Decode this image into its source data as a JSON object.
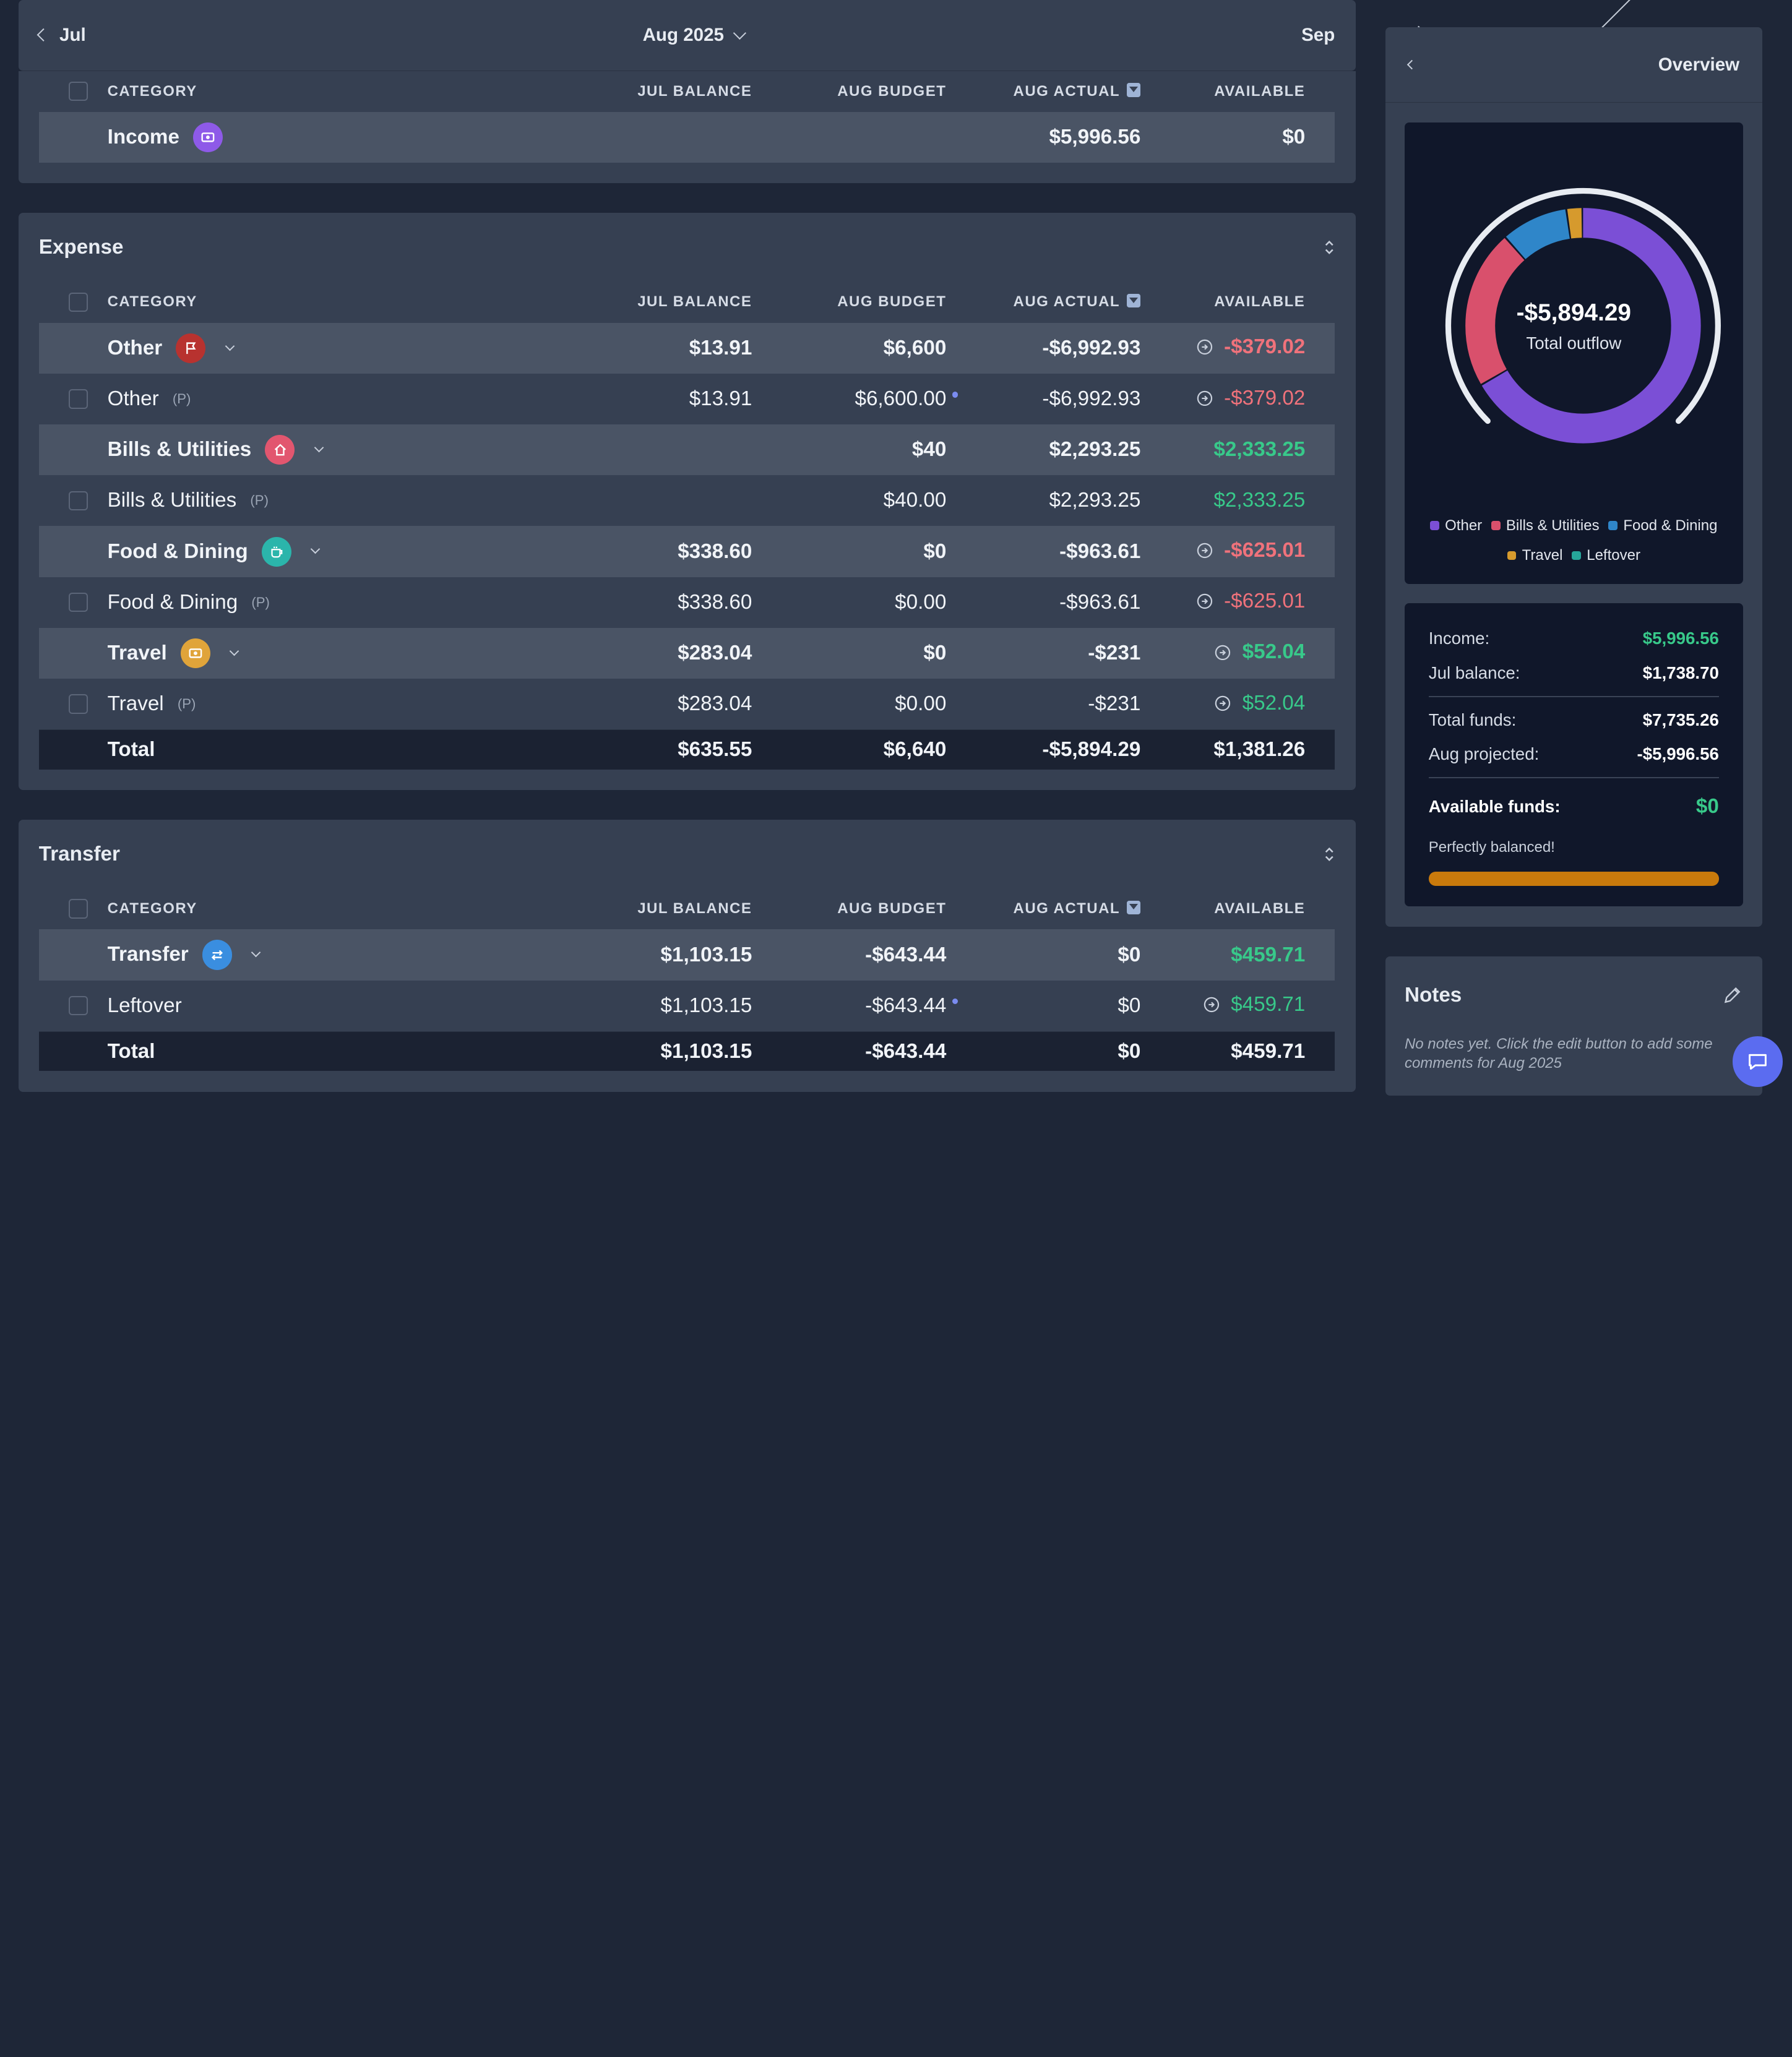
{
  "nav": {
    "prev": "Jul",
    "current": "Aug 2025",
    "next": "Sep"
  },
  "columns": {
    "category": "CATEGORY",
    "jul_balance": "JUL BALANCE",
    "aug_budget": "AUG BUDGET",
    "aug_actual": "AUG ACTUAL",
    "available": "AVAILABLE"
  },
  "income": {
    "name": "Income",
    "actual": "$5,996.56",
    "available": "$0"
  },
  "expense": {
    "title": "Expense",
    "rows": [
      {
        "name": "Other",
        "tag": "",
        "jul": "$13.91",
        "budget": "$6,600",
        "actual": "-$6,992.93",
        "avail": "-$379.02"
      },
      {
        "name": "Other",
        "tag": "(P)",
        "jul": "$13.91",
        "budget": "$6,600.00",
        "actual": "-$6,992.93",
        "avail": "-$379.02"
      },
      {
        "name": "Bills & Utilities",
        "tag": "",
        "jul": "",
        "budget": "$40",
        "actual": "$2,293.25",
        "avail": "$2,333.25"
      },
      {
        "name": "Bills & Utilities",
        "tag": "(P)",
        "jul": "",
        "budget": "$40.00",
        "actual": "$2,293.25",
        "avail": "$2,333.25"
      },
      {
        "name": "Food & Dining",
        "tag": "",
        "jul": "$338.60",
        "budget": "$0",
        "actual": "-$963.61",
        "avail": "-$625.01"
      },
      {
        "name": "Food & Dining",
        "tag": "(P)",
        "jul": "$338.60",
        "budget": "$0.00",
        "actual": "-$963.61",
        "avail": "-$625.01"
      },
      {
        "name": "Travel",
        "tag": "",
        "jul": "$283.04",
        "budget": "$0",
        "actual": "-$231",
        "avail": "$52.04"
      },
      {
        "name": "Travel",
        "tag": "(P)",
        "jul": "$283.04",
        "budget": "$0.00",
        "actual": "-$231",
        "avail": "$52.04"
      }
    ],
    "total": {
      "label": "Total",
      "jul": "$635.55",
      "budget": "$6,640",
      "actual": "-$5,894.29",
      "avail": "$1,381.26"
    }
  },
  "transfer": {
    "title": "Transfer",
    "rows": [
      {
        "name": "Transfer",
        "tag": "",
        "jul": "$1,103.15",
        "budget": "-$643.44",
        "actual": "$0",
        "avail": "$459.71"
      },
      {
        "name": "Leftover",
        "tag": "",
        "jul": "$1,103.15",
        "budget": "-$643.44",
        "actual": "$0",
        "avail": "$459.71"
      }
    ],
    "total": {
      "label": "Total",
      "jul": "$1,103.15",
      "budget": "-$643.44",
      "actual": "$0",
      "avail": "$459.71"
    }
  },
  "overview": {
    "title": "Overview",
    "total_value": "-$5,894.29",
    "total_label": "Total outflow",
    "legend": [
      {
        "name": "Other",
        "color": "#7b4fd6"
      },
      {
        "name": "Bills & Utilities",
        "color": "#d9506c"
      },
      {
        "name": "Food & Dining",
        "color": "#2f86c9"
      },
      {
        "name": "Travel",
        "color": "#d69a2d"
      },
      {
        "name": "Leftover",
        "color": "#26a69a"
      }
    ]
  },
  "chart_data": {
    "type": "pie",
    "categories": [
      "Other",
      "Bills & Utilities",
      "Food & Dining",
      "Travel"
    ],
    "values": [
      6992.93,
      2293.25,
      963.61,
      231
    ],
    "title": "-$5,894.29"
  },
  "summary": {
    "income_label": "Income:",
    "income": "$5,996.56",
    "jul_label": "Jul balance:",
    "jul": "$1,738.70",
    "funds_label": "Total funds:",
    "funds": "$7,735.26",
    "proj_label": "Aug projected:",
    "proj": "-$5,996.56",
    "avail_label": "Available funds:",
    "avail": "$0",
    "note": "Perfectly balanced!",
    "progress": 1.0
  },
  "notes": {
    "title": "Notes",
    "text": "No notes yet. Click the edit button to add some comments for Aug 2025"
  }
}
